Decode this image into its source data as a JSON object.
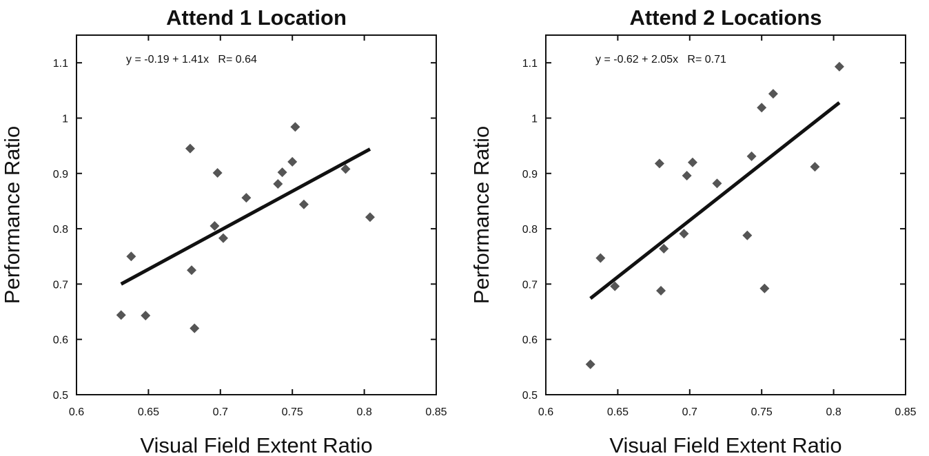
{
  "chart_data": [
    {
      "type": "scatter",
      "title": "Attend 1 Location",
      "x_label": "Visual Field Extent Ratio",
      "y_label": "Performance Ratio",
      "annotation": "y = -0.19 + 1.41x   R= 0.64",
      "color": "#555555",
      "x": [
        0.631,
        0.638,
        0.648,
        0.679,
        0.68,
        0.682,
        0.696,
        0.698,
        0.702,
        0.718,
        0.74,
        0.743,
        0.75,
        0.752,
        0.758,
        0.787,
        0.804
      ],
      "values": [
        0.644,
        0.75,
        0.643,
        0.945,
        0.725,
        0.62,
        0.805,
        0.901,
        0.783,
        0.856,
        0.881,
        0.902,
        0.921,
        0.984,
        0.844,
        0.908,
        0.821
      ],
      "fit_line": {
        "x": [
          0.631,
          0.804
        ],
        "y": [
          0.7,
          0.944
        ],
        "color": "#111111"
      },
      "xlim": [
        0.6,
        0.85
      ],
      "xticks": [
        0.6,
        0.65,
        0.7,
        0.75,
        0.8,
        0.85
      ],
      "ylim": [
        0.5,
        1.15
      ],
      "yticks": [
        0.5,
        0.6,
        0.7,
        0.8,
        0.9,
        1,
        1.1
      ]
    },
    {
      "type": "scatter",
      "title": "Attend 2 Locations",
      "x_label": "Visual Field Extent Ratio",
      "y_label": "Performance Ratio",
      "annotation": "y = -0.62 + 2.05x   R= 0.71",
      "color": "#555555",
      "x": [
        0.631,
        0.638,
        0.648,
        0.679,
        0.68,
        0.682,
        0.696,
        0.698,
        0.702,
        0.719,
        0.74,
        0.743,
        0.75,
        0.752,
        0.758,
        0.787,
        0.804
      ],
      "values": [
        0.555,
        0.747,
        0.696,
        0.918,
        0.688,
        0.764,
        0.791,
        0.896,
        0.92,
        0.882,
        0.788,
        0.931,
        1.019,
        0.692,
        1.044,
        0.912,
        1.093
      ],
      "fit_line": {
        "x": [
          0.631,
          0.804
        ],
        "y": [
          0.674,
          1.028
        ],
        "color": "#111111"
      },
      "xlim": [
        0.6,
        0.85
      ],
      "xticks": [
        0.6,
        0.65,
        0.7,
        0.75,
        0.8,
        0.85
      ],
      "ylim": [
        0.5,
        1.15
      ],
      "yticks": [
        0.5,
        0.6,
        0.7,
        0.8,
        0.9,
        1,
        1.1
      ]
    }
  ]
}
